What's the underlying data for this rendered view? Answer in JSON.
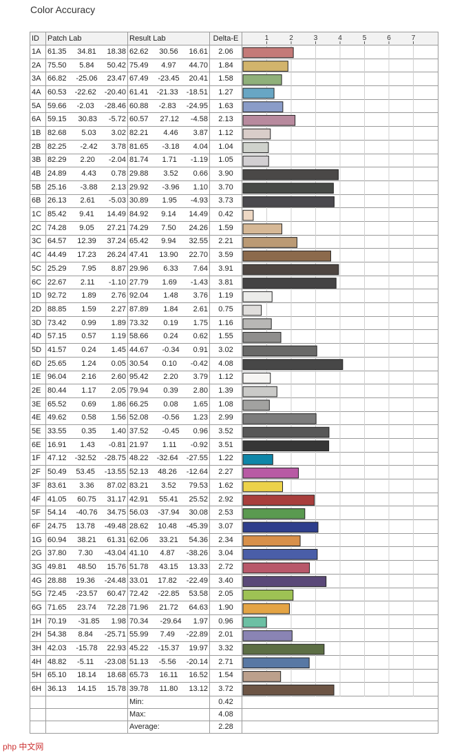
{
  "page_title": "Color Accuracy",
  "headers": {
    "id": "ID",
    "patch": "Patch Lab",
    "result": "Result Lab",
    "delta": "Delta-E"
  },
  "summary": {
    "min_label": "Min:",
    "min_value": "0.42",
    "max_label": "Max:",
    "max_value": "4.08",
    "avg_label": "Average:",
    "avg_value": "2.28"
  },
  "watermark": "php 中文网",
  "chart_data": {
    "type": "bar",
    "title": "Color Accuracy",
    "orientation": "horizontal",
    "xlim": [
      0,
      8
    ],
    "ticks": [
      "1",
      "2",
      "3",
      "4",
      "5",
      "6",
      "7"
    ],
    "grid": true,
    "rows": [
      {
        "id": "1A",
        "patch": [
          "61.35",
          "34.81",
          "18.38"
        ],
        "result": [
          "62.62",
          "30.56",
          "16.61"
        ],
        "delta": "2.06",
        "value": 2.06,
        "color": "#c47a78"
      },
      {
        "id": "2A",
        "patch": [
          "75.50",
          "5.84",
          "50.42"
        ],
        "result": [
          "75.49",
          "4.97",
          "44.70"
        ],
        "delta": "1.84",
        "value": 1.84,
        "color": "#d2b46c"
      },
      {
        "id": "3A",
        "patch": [
          "66.82",
          "-25.06",
          "23.47"
        ],
        "result": [
          "67.49",
          "-23.45",
          "20.41"
        ],
        "delta": "1.58",
        "value": 1.58,
        "color": "#8fb07a"
      },
      {
        "id": "4A",
        "patch": [
          "60.53",
          "-22.62",
          "-20.40"
        ],
        "result": [
          "61.41",
          "-21.33",
          "-18.51"
        ],
        "delta": "1.27",
        "value": 1.27,
        "color": "#68a6c4"
      },
      {
        "id": "5A",
        "patch": [
          "59.66",
          "-2.03",
          "-28.46"
        ],
        "result": [
          "60.88",
          "-2.83",
          "-24.95"
        ],
        "delta": "1.63",
        "value": 1.63,
        "color": "#8a9cc8"
      },
      {
        "id": "6A",
        "patch": [
          "59.15",
          "30.83",
          "-5.72"
        ],
        "result": [
          "60.57",
          "27.12",
          "-4.58"
        ],
        "delta": "2.13",
        "value": 2.13,
        "color": "#b88a9e"
      },
      {
        "id": "1B",
        "patch": [
          "82.68",
          "5.03",
          "3.02"
        ],
        "result": [
          "82.21",
          "4.46",
          "3.87"
        ],
        "delta": "1.12",
        "value": 1.12,
        "color": "#d9cdc9"
      },
      {
        "id": "2B",
        "patch": [
          "82.25",
          "-2.42",
          "3.78"
        ],
        "result": [
          "81.65",
          "-3.18",
          "4.04"
        ],
        "delta": "1.04",
        "value": 1.04,
        "color": "#cfd2cc"
      },
      {
        "id": "3B",
        "patch": [
          "82.29",
          "2.20",
          "-2.04"
        ],
        "result": [
          "81.74",
          "1.71",
          "-1.19"
        ],
        "delta": "1.05",
        "value": 1.05,
        "color": "#d2cfd2"
      },
      {
        "id": "4B",
        "patch": [
          "24.89",
          "4.43",
          "0.78"
        ],
        "result": [
          "29.88",
          "3.52",
          "0.66"
        ],
        "delta": "3.90",
        "value": 3.9,
        "color": "#4a4847"
      },
      {
        "id": "5B",
        "patch": [
          "25.16",
          "-3.88",
          "2.13"
        ],
        "result": [
          "29.92",
          "-3.96",
          "1.10"
        ],
        "delta": "3.70",
        "value": 3.7,
        "color": "#464946"
      },
      {
        "id": "6B",
        "patch": [
          "26.13",
          "2.61",
          "-5.03"
        ],
        "result": [
          "30.89",
          "1.95",
          "-4.93"
        ],
        "delta": "3.73",
        "value": 3.73,
        "color": "#4a494e"
      },
      {
        "id": "1C",
        "patch": [
          "85.42",
          "9.41",
          "14.49"
        ],
        "result": [
          "84.92",
          "9.14",
          "14.49"
        ],
        "delta": "0.42",
        "value": 0.42,
        "color": "#eed8c4"
      },
      {
        "id": "2C",
        "patch": [
          "74.28",
          "9.05",
          "27.21"
        ],
        "result": [
          "74.29",
          "7.50",
          "24.26"
        ],
        "delta": "1.59",
        "value": 1.59,
        "color": "#d6b896"
      },
      {
        "id": "3C",
        "patch": [
          "64.57",
          "12.39",
          "37.24"
        ],
        "result": [
          "65.42",
          "9.94",
          "32.55"
        ],
        "delta": "2.21",
        "value": 2.21,
        "color": "#bb9a74"
      },
      {
        "id": "4C",
        "patch": [
          "44.49",
          "17.23",
          "26.24"
        ],
        "result": [
          "47.41",
          "13.90",
          "22.70"
        ],
        "delta": "3.59",
        "value": 3.59,
        "color": "#8c6a4c"
      },
      {
        "id": "5C",
        "patch": [
          "25.29",
          "7.95",
          "8.87"
        ],
        "result": [
          "29.96",
          "6.33",
          "7.64"
        ],
        "delta": "3.91",
        "value": 3.91,
        "color": "#4e4541"
      },
      {
        "id": "6C",
        "patch": [
          "22.67",
          "2.11",
          "-1.10"
        ],
        "result": [
          "27.79",
          "1.69",
          "-1.43"
        ],
        "delta": "3.81",
        "value": 3.81,
        "color": "#444344"
      },
      {
        "id": "1D",
        "patch": [
          "92.72",
          "1.89",
          "2.76"
        ],
        "result": [
          "92.04",
          "1.48",
          "3.76"
        ],
        "delta": "1.19",
        "value": 1.19,
        "color": "#ececea"
      },
      {
        "id": "2D",
        "patch": [
          "88.85",
          "1.59",
          "2.27"
        ],
        "result": [
          "87.89",
          "1.84",
          "2.61"
        ],
        "delta": "0.75",
        "value": 0.75,
        "color": "#e0dedc"
      },
      {
        "id": "3D",
        "patch": [
          "73.42",
          "0.99",
          "1.89"
        ],
        "result": [
          "73.32",
          "0.19",
          "1.75"
        ],
        "delta": "1.16",
        "value": 1.16,
        "color": "#b8b7b5"
      },
      {
        "id": "4D",
        "patch": [
          "57.15",
          "0.57",
          "1.19"
        ],
        "result": [
          "58.66",
          "0.24",
          "0.62"
        ],
        "delta": "1.55",
        "value": 1.55,
        "color": "#8f8e8d"
      },
      {
        "id": "5D",
        "patch": [
          "41.57",
          "0.24",
          "1.45"
        ],
        "result": [
          "44.67",
          "-0.34",
          "0.91"
        ],
        "delta": "3.02",
        "value": 3.02,
        "color": "#696968"
      },
      {
        "id": "6D",
        "patch": [
          "25.65",
          "1.24",
          "0.05"
        ],
        "result": [
          "30.54",
          "0.10",
          "-0.42"
        ],
        "delta": "4.08",
        "value": 4.08,
        "color": "#474747"
      },
      {
        "id": "1E",
        "patch": [
          "96.04",
          "2.16",
          "2.60"
        ],
        "result": [
          "95.42",
          "2.20",
          "3.79"
        ],
        "delta": "1.12",
        "value": 1.12,
        "color": "#f6f5f3"
      },
      {
        "id": "2E",
        "patch": [
          "80.44",
          "1.17",
          "2.05"
        ],
        "result": [
          "79.94",
          "0.39",
          "2.80"
        ],
        "delta": "1.39",
        "value": 1.39,
        "color": "#cacac8"
      },
      {
        "id": "3E",
        "patch": [
          "65.52",
          "0.69",
          "1.86"
        ],
        "result": [
          "66.25",
          "0.08",
          "1.65"
        ],
        "delta": "1.08",
        "value": 1.08,
        "color": "#a2a2a0"
      },
      {
        "id": "4E",
        "patch": [
          "49.62",
          "0.58",
          "1.56"
        ],
        "result": [
          "52.08",
          "-0.56",
          "1.23"
        ],
        "delta": "2.99",
        "value": 2.99,
        "color": "#7c7c7c"
      },
      {
        "id": "5E",
        "patch": [
          "33.55",
          "0.35",
          "1.40"
        ],
        "result": [
          "37.52",
          "-0.45",
          "0.96"
        ],
        "delta": "3.52",
        "value": 3.52,
        "color": "#575757"
      },
      {
        "id": "6E",
        "patch": [
          "16.91",
          "1.43",
          "-0.81"
        ],
        "result": [
          "21.97",
          "1.11",
          "-0.92"
        ],
        "delta": "3.51",
        "value": 3.51,
        "color": "#363636"
      },
      {
        "id": "1F",
        "patch": [
          "47.12",
          "-32.52",
          "-28.75"
        ],
        "result": [
          "48.22",
          "-32.64",
          "-27.55"
        ],
        "delta": "1.22",
        "value": 1.22,
        "color": "#0e86a8"
      },
      {
        "id": "2F",
        "patch": [
          "50.49",
          "53.45",
          "-13.55"
        ],
        "result": [
          "52.13",
          "48.26",
          "-12.64"
        ],
        "delta": "2.27",
        "value": 2.27,
        "color": "#b85aa4"
      },
      {
        "id": "3F",
        "patch": [
          "83.61",
          "3.36",
          "87.02"
        ],
        "result": [
          "83.21",
          "3.52",
          "79.53"
        ],
        "delta": "1.62",
        "value": 1.62,
        "color": "#ecd24a"
      },
      {
        "id": "4F",
        "patch": [
          "41.05",
          "60.75",
          "31.17"
        ],
        "result": [
          "42.91",
          "55.41",
          "25.52"
        ],
        "delta": "2.92",
        "value": 2.92,
        "color": "#a83e3c"
      },
      {
        "id": "5F",
        "patch": [
          "54.14",
          "-40.76",
          "34.75"
        ],
        "result": [
          "56.03",
          "-37.94",
          "30.08"
        ],
        "delta": "2.53",
        "value": 2.53,
        "color": "#5a9a50"
      },
      {
        "id": "6F",
        "patch": [
          "24.75",
          "13.78",
          "-49.48"
        ],
        "result": [
          "28.62",
          "10.48",
          "-45.39"
        ],
        "delta": "3.07",
        "value": 3.07,
        "color": "#2e3e8c"
      },
      {
        "id": "1G",
        "patch": [
          "60.94",
          "38.21",
          "61.31"
        ],
        "result": [
          "62.06",
          "33.21",
          "54.36"
        ],
        "delta": "2.34",
        "value": 2.34,
        "color": "#d8904a"
      },
      {
        "id": "2G",
        "patch": [
          "37.80",
          "7.30",
          "-43.04"
        ],
        "result": [
          "41.10",
          "4.87",
          "-38.26"
        ],
        "delta": "3.04",
        "value": 3.04,
        "color": "#4a5ea8"
      },
      {
        "id": "3G",
        "patch": [
          "49.81",
          "48.50",
          "15.76"
        ],
        "result": [
          "51.78",
          "43.15",
          "13.33"
        ],
        "delta": "2.72",
        "value": 2.72,
        "color": "#b8586a"
      },
      {
        "id": "4G",
        "patch": [
          "28.88",
          "19.36",
          "-24.48"
        ],
        "result": [
          "33.01",
          "17.82",
          "-22.49"
        ],
        "delta": "3.40",
        "value": 3.4,
        "color": "#5a4878"
      },
      {
        "id": "5G",
        "patch": [
          "72.45",
          "-23.57",
          "60.47"
        ],
        "result": [
          "72.42",
          "-22.85",
          "53.58"
        ],
        "delta": "2.05",
        "value": 2.05,
        "color": "#9ec254"
      },
      {
        "id": "6G",
        "patch": [
          "71.65",
          "23.74",
          "72.28"
        ],
        "result": [
          "71.96",
          "21.72",
          "64.63"
        ],
        "delta": "1.90",
        "value": 1.9,
        "color": "#e4a444"
      },
      {
        "id": "1H",
        "patch": [
          "70.19",
          "-31.85",
          "1.98"
        ],
        "result": [
          "70.34",
          "-29.64",
          "1.97"
        ],
        "delta": "0.96",
        "value": 0.96,
        "color": "#6cc0a4"
      },
      {
        "id": "2H",
        "patch": [
          "54.38",
          "8.84",
          "-25.71"
        ],
        "result": [
          "55.99",
          "7.49",
          "-22.89"
        ],
        "delta": "2.01",
        "value": 2.01,
        "color": "#8a84b4"
      },
      {
        "id": "3H",
        "patch": [
          "42.03",
          "-15.78",
          "22.93"
        ],
        "result": [
          "45.22",
          "-15.37",
          "19.97"
        ],
        "delta": "3.32",
        "value": 3.32,
        "color": "#5c6e44"
      },
      {
        "id": "4H",
        "patch": [
          "48.82",
          "-5.11",
          "-23.08"
        ],
        "result": [
          "51.13",
          "-5.56",
          "-20.14"
        ],
        "delta": "2.71",
        "value": 2.71,
        "color": "#5878a4"
      },
      {
        "id": "5H",
        "patch": [
          "65.10",
          "18.14",
          "18.68"
        ],
        "result": [
          "65.73",
          "16.11",
          "16.52"
        ],
        "delta": "1.54",
        "value": 1.54,
        "color": "#bca08c"
      },
      {
        "id": "6H",
        "patch": [
          "36.13",
          "14.15",
          "15.78"
        ],
        "result": [
          "39.78",
          "11.80",
          "13.12"
        ],
        "delta": "3.72",
        "value": 3.72,
        "color": "#6c5444"
      }
    ]
  }
}
